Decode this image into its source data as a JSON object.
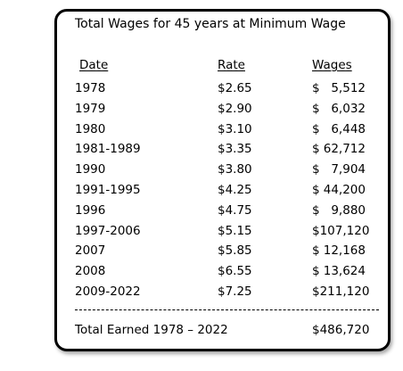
{
  "title": "Total Wages for 45 years at Minimum Wage",
  "headers": {
    "date": "Date",
    "rate": "Rate",
    "wages": "Wages"
  },
  "rows": [
    {
      "date": "1978",
      "rate": "$2.65",
      "cur": "$",
      "amount": "5,512"
    },
    {
      "date": "1979",
      "rate": "$2.90",
      "cur": "$",
      "amount": "6,032"
    },
    {
      "date": "1980",
      "rate": "$3.10",
      "cur": "$",
      "amount": "6,448"
    },
    {
      "date": "1981-1989",
      "rate": "$3.35",
      "cur": "$",
      "amount": "62,712"
    },
    {
      "date": "1990",
      "rate": "$3.80",
      "cur": "$",
      "amount": "7,904"
    },
    {
      "date": "1991-1995",
      "rate": "$4.25",
      "cur": "$",
      "amount": "44,200"
    },
    {
      "date": "1996",
      "rate": "$4.75",
      "cur": "$",
      "amount": "9,880"
    },
    {
      "date": "1997-2006",
      "rate": "$5.15",
      "cur": "$",
      "amount": "107,120"
    },
    {
      "date": "2007",
      "rate": "$5.85",
      "cur": "$",
      "amount": "12,168"
    },
    {
      "date": "2008",
      "rate": "$6.55",
      "cur": "$",
      "amount": "13,624"
    },
    {
      "date": "2009-2022",
      "rate": "$7.25",
      "cur": "$",
      "amount": "211,120"
    }
  ],
  "total": {
    "label": "Total Earned 1978 – 2022",
    "value": "$486,720"
  }
}
